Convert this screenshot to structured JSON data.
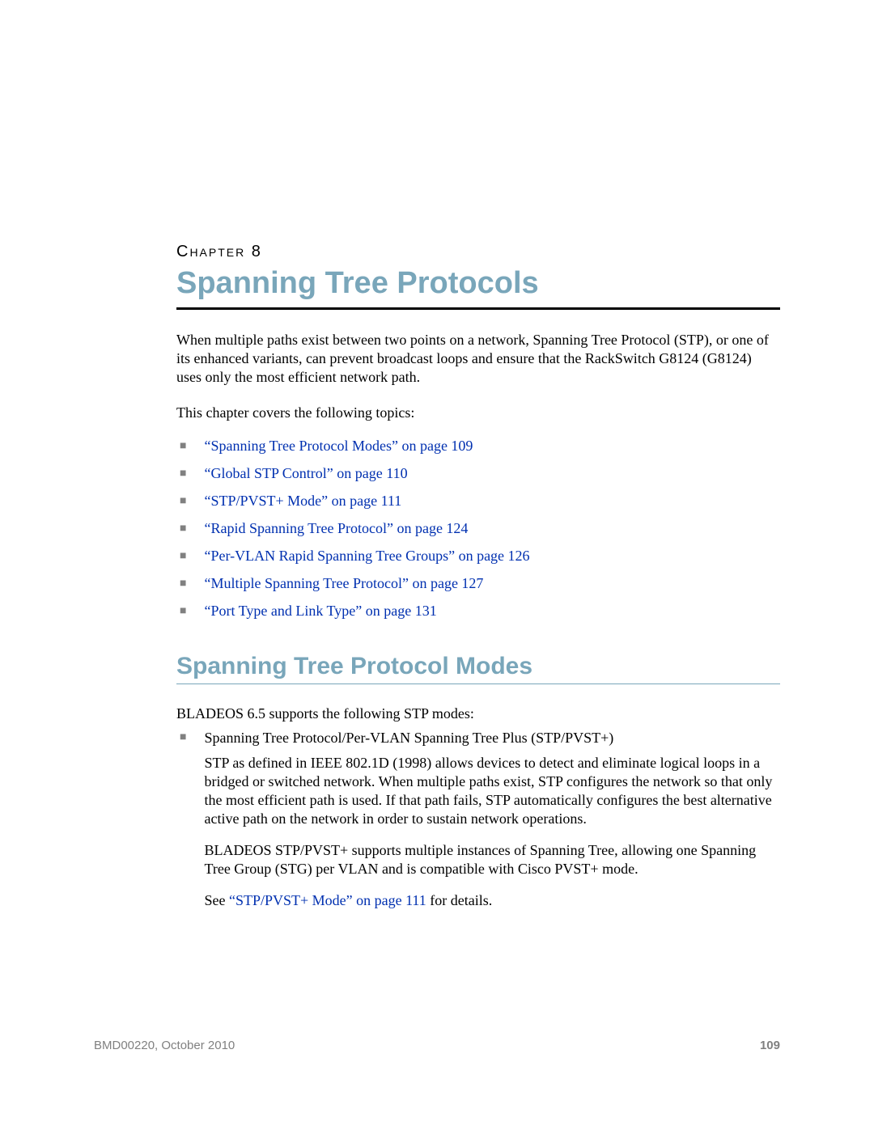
{
  "header": {
    "chapter_label": "Chapter 8",
    "chapter_title": "Spanning Tree Protocols"
  },
  "intro": {
    "para1": "When multiple paths exist between two points on a network, Spanning Tree Protocol (STP), or one of its enhanced variants, can prevent broadcast loops and ensure that the RackSwitch G8124 (G8124) uses only the most efficient network path.",
    "topics_intro": "This chapter covers the following topics:"
  },
  "toc": [
    "“Spanning Tree Protocol Modes” on page 109",
    "“Global STP Control” on page 110",
    "“STP/PVST+ Mode” on page 111",
    "“Rapid Spanning Tree Protocol” on page 124",
    "“Per-VLAN Rapid Spanning Tree Groups” on page 126",
    "“Multiple Spanning Tree Protocol” on page 127",
    "“Port Type and Link Type” on page 131"
  ],
  "section": {
    "title": "Spanning Tree Protocol Modes",
    "intro": "BLADEOS 6.5 supports the following STP modes:",
    "mode1": {
      "head": "Spanning Tree Protocol/Per-VLAN Spanning Tree Plus (STP/PVST+)",
      "para1": "STP as defined in IEEE 802.1D (1998) allows devices to detect and eliminate logical loops in a bridged or switched network. When multiple paths exist, STP configures the network so that only the most efficient path is used. If that path fails, STP automatically configures the best alternative active path on the network in order to sustain network operations.",
      "para2": "BLADEOS STP/PVST+ supports multiple instances of Spanning Tree, allowing one Spanning Tree Group (STG) per VLAN and is compatible with Cisco PVST+ mode.",
      "see_prefix": "See ",
      "see_link": "“STP/PVST+ Mode” on page 111",
      "see_suffix": " for details."
    }
  },
  "footer": {
    "left": "BMD00220, October 2010",
    "page": "109"
  },
  "colors": {
    "heading": "#79a6ba",
    "link": "#0030b0",
    "bullet": "#808080",
    "footer": "#808080"
  },
  "typography": {
    "body_family": "Times New Roman",
    "heading_family": "Helvetica",
    "chapter_title_size": 38,
    "section_title_size": 30,
    "body_size": 18,
    "footer_size": 15
  }
}
